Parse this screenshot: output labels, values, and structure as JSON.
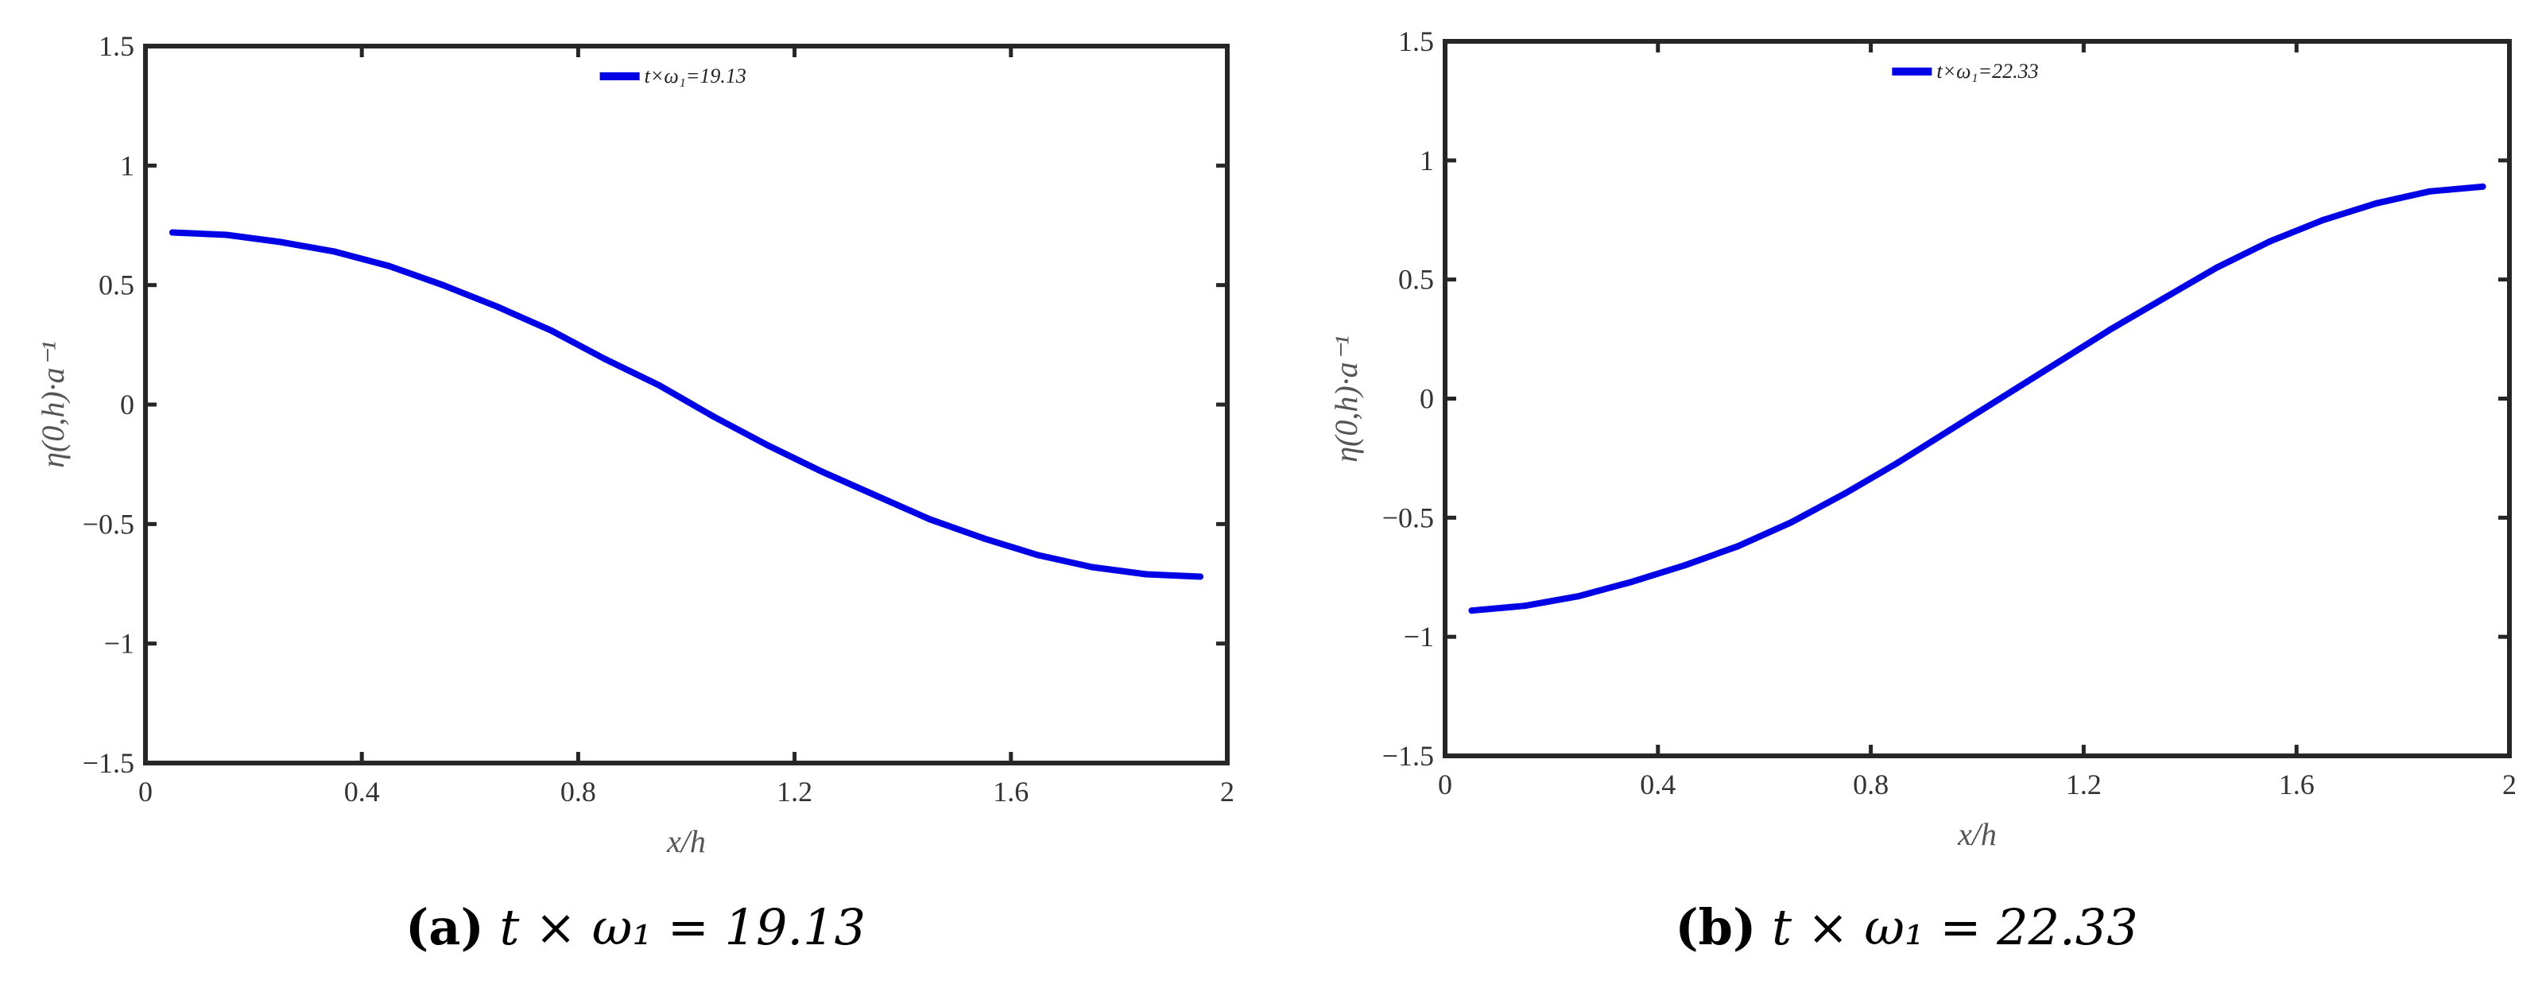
{
  "chart_data": [
    {
      "type": "line",
      "panel_tag": "(a)",
      "caption_math": "t × ω₁ = 19.13",
      "xlabel": "x/h",
      "ylabel": "η(0,h)·a⁻¹",
      "xlim": [
        0,
        2
      ],
      "ylim": [
        -1.5,
        1.5
      ],
      "x_ticks": [
        "0",
        "0.4",
        "0.8",
        "1.2",
        "1.6",
        "2"
      ],
      "y_ticks": [
        "1.5",
        "1",
        "0.5",
        "0",
        "−0.5",
        "−1",
        "−1.5"
      ],
      "grid": false,
      "legend_position": "top-center",
      "series": [
        {
          "name": "t×ω₁=19.13",
          "color": "#0000e6",
          "x": [
            0.05,
            0.15,
            0.25,
            0.35,
            0.45,
            0.55,
            0.65,
            0.75,
            0.85,
            0.95,
            1.05,
            1.15,
            1.25,
            1.35,
            1.45,
            1.55,
            1.65,
            1.75,
            1.85,
            1.95
          ],
          "y": [
            0.72,
            0.71,
            0.68,
            0.64,
            0.58,
            0.5,
            0.41,
            0.31,
            0.19,
            0.08,
            -0.05,
            -0.17,
            -0.28,
            -0.38,
            -0.48,
            -0.56,
            -0.63,
            -0.68,
            -0.71,
            -0.72
          ]
        }
      ]
    },
    {
      "type": "line",
      "panel_tag": "(b)",
      "caption_math": "t × ω₁ = 22.33",
      "xlabel": "x/h",
      "ylabel": "η(0,h)·a⁻¹",
      "xlim": [
        0,
        2
      ],
      "ylim": [
        -1.5,
        1.5
      ],
      "x_ticks": [
        "0",
        "0.4",
        "0.8",
        "1.2",
        "1.6",
        "2"
      ],
      "y_ticks": [
        "1.5",
        "1",
        "0.5",
        "0",
        "−0.5",
        "−1",
        "−1.5"
      ],
      "grid": false,
      "legend_position": "top-center",
      "series": [
        {
          "name": "t×ω₁=22.33",
          "color": "#0000e6",
          "x": [
            0.05,
            0.15,
            0.25,
            0.35,
            0.45,
            0.55,
            0.65,
            0.75,
            0.85,
            0.95,
            1.05,
            1.15,
            1.25,
            1.35,
            1.45,
            1.55,
            1.65,
            1.75,
            1.85,
            1.95
          ],
          "y": [
            -0.89,
            -0.87,
            -0.83,
            -0.77,
            -0.7,
            -0.62,
            -0.52,
            -0.4,
            -0.27,
            -0.13,
            0.01,
            0.15,
            0.29,
            0.42,
            0.55,
            0.66,
            0.75,
            0.82,
            0.87,
            0.89
          ]
        }
      ]
    }
  ]
}
